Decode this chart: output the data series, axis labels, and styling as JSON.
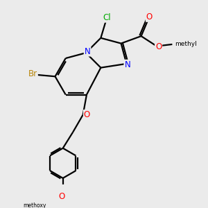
{
  "background_color": "#ebebeb",
  "bond_color": "#000000",
  "bond_width": 1.6,
  "atom_colors": {
    "Br": "#b8860b",
    "Cl": "#00aa00",
    "N": "#0000ff",
    "O": "#ff0000",
    "C": "#000000"
  },
  "title": "",
  "figsize": [
    3.0,
    3.0
  ],
  "dpi": 100
}
